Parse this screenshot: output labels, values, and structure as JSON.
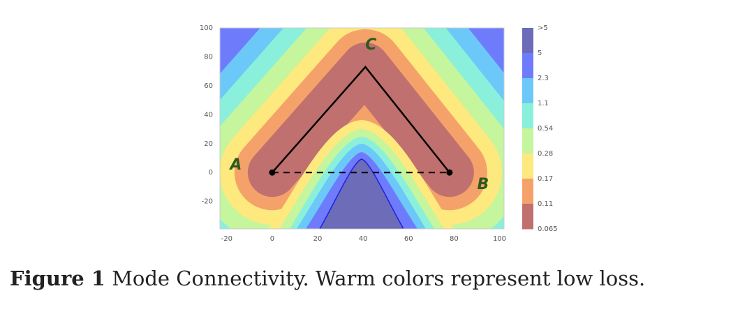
{
  "figure": {
    "plot": {
      "xlim": [
        -23,
        102
      ],
      "ylim": [
        -39,
        100
      ],
      "xticks": [
        -20,
        0,
        20,
        40,
        60,
        80,
        100
      ],
      "yticks": [
        -20,
        0,
        20,
        40,
        60,
        80,
        100
      ],
      "points": [
        {
          "label": "A",
          "x": 0,
          "y": 0
        },
        {
          "label": "C",
          "x": 41,
          "y": 73
        },
        {
          "label": "B",
          "x": 78,
          "y": 0
        }
      ],
      "colorbar": [
        ">5",
        "5",
        "2.3",
        "1.1",
        "0.54",
        "0.28",
        "0.17",
        "0.11",
        "0.065"
      ]
    },
    "caption": {
      "label": "Figure 1",
      "text": "Mode Connectivity. Warm colors represent low loss."
    }
  }
}
